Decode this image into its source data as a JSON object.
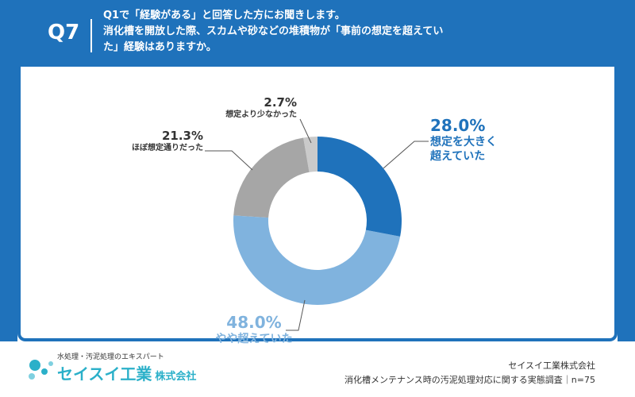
{
  "header": {
    "badge": "Q7",
    "lead": "Q1で「経験がある」と回答した方にお聞きします。",
    "question": "消化槽を開放した際、スカムや砂などの堆積物が「事前の想定を超えていた」経験はありますか。"
  },
  "chart_data": {
    "type": "donut",
    "categories": [
      "想定を大きく超えていた",
      "やや超えていた",
      "ほぼ想定通りだった",
      "想定より少なかった"
    ],
    "values": [
      28,
      48,
      21.3,
      2.7
    ],
    "value_labels": [
      "28.0%",
      "48.0%",
      "21.3%",
      "2.7%"
    ],
    "colors": [
      "#1f72bb",
      "#80b3de",
      "#a6a6a6",
      "#cacaca"
    ],
    "label_colors": [
      "#1f72bb",
      "#80b3de",
      "#333333",
      "#333333"
    ]
  },
  "footer": {
    "tagline": "水処理・汚泥処理のエキスパート",
    "brand": "セイスイ工業",
    "brand_suffix": "株式会社",
    "source_company": "セイスイ工業株式会社",
    "source_survey": "消化槽メンテナンス時の汚泥処理対応に関する実態調査｜n=75"
  }
}
